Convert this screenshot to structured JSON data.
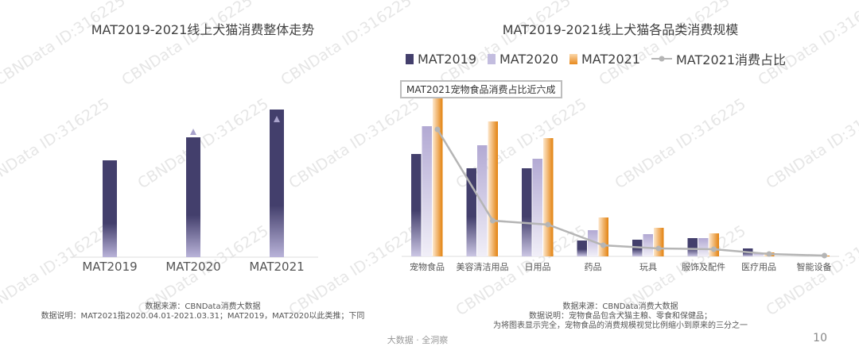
{
  "watermark": "CBNData ID:316225",
  "footer": "大数据 · 全洞察",
  "page_number": "10",
  "colors": {
    "mat2019": "#433f6c",
    "mat2020": "#b8b0d6",
    "mat2021": "#e88a1e",
    "share_line": "#b5b5b5"
  },
  "chart_data": [
    {
      "type": "bar",
      "title": "MAT2019-2021线上犬猫消费整体走势",
      "categories": [
        "MAT2019",
        "MAT2020",
        "MAT2021"
      ],
      "values": [
        122,
        151,
        186
      ],
      "value_unit": "relative (no axis printed)",
      "growth_markers": [
        false,
        true,
        true
      ],
      "grid": false,
      "notes": [
        "数据来源：CBNData消费大数据",
        "数据说明：MAT2021指2020.04.01-2021.03.31；MAT2019，MAT2020以此类推；下同"
      ]
    },
    {
      "type": "bar",
      "title": "MAT2019-2021线上犬猫各品类消费规模",
      "categories": [
        "宠物食品",
        "美容清洁用品",
        "日用品",
        "药品",
        "玩具",
        "服饰及配件",
        "医疗用品",
        "智能设备"
      ],
      "series": [
        {
          "name": "MAT2019",
          "values": [
            129,
            111,
            111,
            20,
            21,
            23,
            10,
            0
          ]
        },
        {
          "name": "MAT2020",
          "values": [
            164,
            140,
            123,
            33,
            28,
            23,
            4,
            0
          ]
        },
        {
          "name": "MAT2021",
          "values": [
            205,
            170,
            149,
            49,
            36,
            29,
            5,
            1
          ]
        }
      ],
      "line_series": {
        "name": "MAT2021消费占比",
        "values": [
          160,
          45,
          40,
          14,
          10,
          9,
          3,
          1
        ]
      },
      "legend_position": "top",
      "grid": false,
      "annotation": "MAT2021宠物食品消费占比近六成",
      "notes": [
        "数据来源：CBNData消费大数据",
        "数据说明：宠物食品包含犬猫主粮、零食和保健品；",
        "为将图表显示完全，宠物食品的消费规模视觉比例缩小到原来的三分之一"
      ]
    }
  ]
}
